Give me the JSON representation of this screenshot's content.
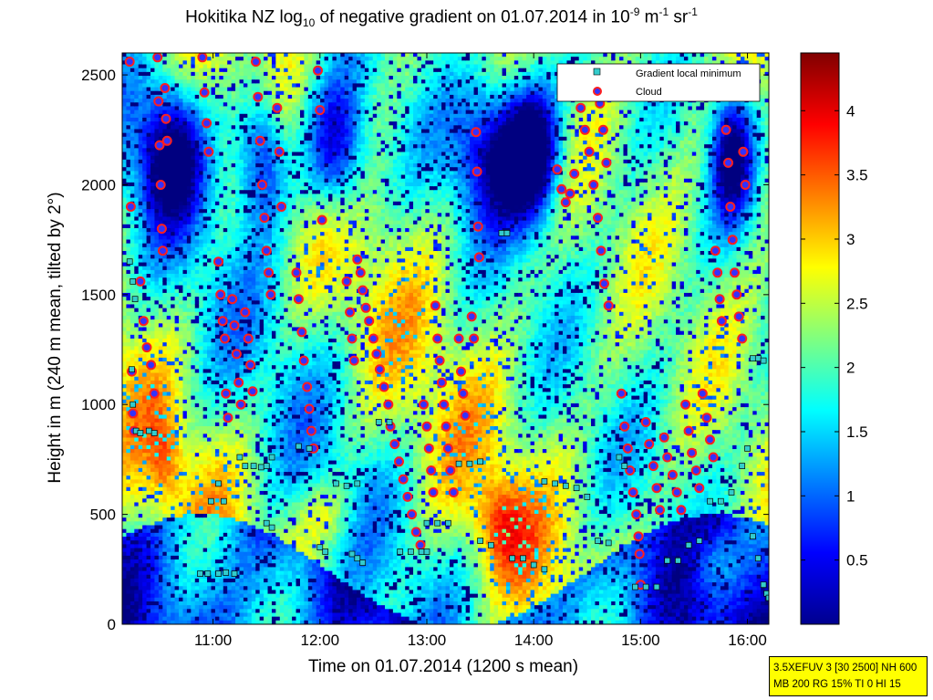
{
  "title": {
    "pre": "Hokitika NZ log",
    "sub": "10",
    "mid": " of negative gradient on 01.07.2014 in 10",
    "sup1": "-9",
    "unit1": " m",
    "sup2": "-1",
    "unit2": " sr",
    "sup3": "-1"
  },
  "chart_data": {
    "type": "heatmap",
    "xlabel": "Time on 01.07.2014 (1200 s mean)",
    "ylabel": "Height in m (240 m mean, tilted by 2°)",
    "x_ticks": [
      "11:00",
      "12:00",
      "13:00",
      "14:00",
      "15:00",
      "16:00"
    ],
    "x_tick_hours": [
      11,
      12,
      13,
      14,
      15,
      16
    ],
    "xlim_hours": [
      10.15,
      16.2
    ],
    "y_ticks": [
      0,
      500,
      1000,
      1500,
      2000,
      2500
    ],
    "ylim": [
      0,
      2600
    ],
    "colorbar": {
      "ticks": [
        0.5,
        1,
        1.5,
        2,
        2.5,
        3,
        3.5,
        4
      ],
      "range": [
        0,
        4.45
      ],
      "colormap": "jet"
    },
    "legend": {
      "position": "top-right",
      "items": [
        "Gradient local minimum",
        "Cloud"
      ]
    },
    "series": [
      {
        "name": "Cloud",
        "marker": "circle",
        "fill": "#3232ff",
        "edge": "#ff1e1e",
        "points": [
          [
            10.22,
            2560
          ],
          [
            10.23,
            1900
          ],
          [
            10.24,
            1150
          ],
          [
            10.25,
            960
          ],
          [
            10.26,
            880
          ],
          [
            10.32,
            1560
          ],
          [
            10.35,
            1380
          ],
          [
            10.38,
            1260
          ],
          [
            10.42,
            1180
          ],
          [
            10.45,
            1050
          ],
          [
            10.48,
            2580
          ],
          [
            10.49,
            2380
          ],
          [
            10.5,
            2180
          ],
          [
            10.51,
            2000
          ],
          [
            10.52,
            1800
          ],
          [
            10.53,
            1700
          ],
          [
            10.55,
            2440
          ],
          [
            10.56,
            2300
          ],
          [
            10.57,
            2200
          ],
          [
            10.9,
            2580
          ],
          [
            10.92,
            2420
          ],
          [
            10.94,
            2280
          ],
          [
            10.96,
            2150
          ],
          [
            11.05,
            1650
          ],
          [
            11.07,
            1500
          ],
          [
            11.09,
            1380
          ],
          [
            11.11,
            1300
          ],
          [
            11.12,
            1050
          ],
          [
            11.14,
            940
          ],
          [
            11.18,
            1480
          ],
          [
            11.2,
            1360
          ],
          [
            11.22,
            1230
          ],
          [
            11.24,
            1100
          ],
          [
            11.26,
            1000
          ],
          [
            11.3,
            1420
          ],
          [
            11.33,
            1300
          ],
          [
            11.35,
            1180
          ],
          [
            11.37,
            1060
          ],
          [
            11.4,
            2560
          ],
          [
            11.42,
            2400
          ],
          [
            11.44,
            2200
          ],
          [
            11.46,
            2000
          ],
          [
            11.48,
            1850
          ],
          [
            11.5,
            1700
          ],
          [
            11.52,
            1600
          ],
          [
            11.54,
            1500
          ],
          [
            11.6,
            2350
          ],
          [
            11.62,
            2150
          ],
          [
            11.64,
            1900
          ],
          [
            11.78,
            1600
          ],
          [
            11.8,
            1480
          ],
          [
            11.83,
            1330
          ],
          [
            11.85,
            1200
          ],
          [
            11.88,
            1080
          ],
          [
            11.9,
            980
          ],
          [
            11.92,
            880
          ],
          [
            11.94,
            800
          ],
          [
            11.98,
            2520
          ],
          [
            12.0,
            2340
          ],
          [
            12.02,
            1840
          ],
          [
            12.25,
            1560
          ],
          [
            12.28,
            1420
          ],
          [
            12.3,
            1300
          ],
          [
            12.32,
            1200
          ],
          [
            12.35,
            1660
          ],
          [
            12.38,
            1600
          ],
          [
            12.4,
            1520
          ],
          [
            12.43,
            1440
          ],
          [
            12.46,
            1380
          ],
          [
            12.5,
            1300
          ],
          [
            12.53,
            1230
          ],
          [
            12.56,
            1160
          ],
          [
            12.6,
            1080
          ],
          [
            12.64,
            1000
          ],
          [
            12.66,
            900
          ],
          [
            12.7,
            820
          ],
          [
            12.74,
            740
          ],
          [
            12.78,
            660
          ],
          [
            12.82,
            580
          ],
          [
            12.86,
            500
          ],
          [
            12.9,
            420
          ],
          [
            12.94,
            360
          ],
          [
            12.97,
            1000
          ],
          [
            13.0,
            900
          ],
          [
            13.02,
            800
          ],
          [
            13.04,
            700
          ],
          [
            13.06,
            600
          ],
          [
            13.08,
            1450
          ],
          [
            13.1,
            1300
          ],
          [
            13.12,
            1200
          ],
          [
            13.14,
            1100
          ],
          [
            13.16,
            1000
          ],
          [
            13.18,
            900
          ],
          [
            13.2,
            800
          ],
          [
            13.22,
            700
          ],
          [
            13.25,
            600
          ],
          [
            13.3,
            1300
          ],
          [
            13.32,
            1150
          ],
          [
            13.34,
            1050
          ],
          [
            13.36,
            950
          ],
          [
            13.42,
            1400
          ],
          [
            13.44,
            1300
          ],
          [
            13.46,
            2240
          ],
          [
            13.47,
            2060
          ],
          [
            13.48,
            1810
          ],
          [
            13.49,
            1670
          ],
          [
            14.22,
            2070
          ],
          [
            14.26,
            1980
          ],
          [
            14.3,
            1920
          ],
          [
            14.34,
            1960
          ],
          [
            14.38,
            2050
          ],
          [
            14.4,
            2450
          ],
          [
            14.44,
            2350
          ],
          [
            14.48,
            2250
          ],
          [
            14.52,
            2150
          ],
          [
            14.56,
            2000
          ],
          [
            14.6,
            1850
          ],
          [
            14.63,
            1700
          ],
          [
            14.66,
            1550
          ],
          [
            14.7,
            1450
          ],
          [
            14.62,
            2370
          ],
          [
            14.65,
            2250
          ],
          [
            14.68,
            2100
          ],
          [
            14.82,
            1050
          ],
          [
            14.85,
            900
          ],
          [
            14.88,
            800
          ],
          [
            14.9,
            700
          ],
          [
            14.93,
            600
          ],
          [
            14.96,
            500
          ],
          [
            14.98,
            400
          ],
          [
            14.99,
            320
          ],
          [
            15.0,
            180
          ],
          [
            15.05,
            920
          ],
          [
            15.08,
            820
          ],
          [
            15.12,
            720
          ],
          [
            15.15,
            620
          ],
          [
            15.18,
            520
          ],
          [
            15.22,
            850
          ],
          [
            15.25,
            760
          ],
          [
            15.3,
            680
          ],
          [
            15.34,
            600
          ],
          [
            15.38,
            520
          ],
          [
            15.42,
            1000
          ],
          [
            15.45,
            880
          ],
          [
            15.48,
            780
          ],
          [
            15.52,
            700
          ],
          [
            15.55,
            620
          ],
          [
            15.58,
            1050
          ],
          [
            15.62,
            940
          ],
          [
            15.65,
            840
          ],
          [
            15.68,
            760
          ],
          [
            15.7,
            1700
          ],
          [
            15.72,
            1600
          ],
          [
            15.74,
            1480
          ],
          [
            15.76,
            1380
          ],
          [
            15.8,
            2250
          ],
          [
            15.82,
            2100
          ],
          [
            15.84,
            1900
          ],
          [
            15.86,
            1750
          ],
          [
            15.88,
            1600
          ],
          [
            15.9,
            1500
          ],
          [
            15.92,
            1400
          ],
          [
            15.95,
            1300
          ],
          [
            15.78,
            2480
          ],
          [
            15.96,
            2150
          ],
          [
            15.98,
            2000
          ]
        ]
      },
      {
        "name": "Gradient local minimum",
        "marker": "square",
        "fill": "#33cccc",
        "points": [
          [
            10.22,
            1650
          ],
          [
            10.25,
            1560
          ],
          [
            10.27,
            1480
          ],
          [
            10.28,
            880
          ],
          [
            10.32,
            870
          ],
          [
            10.4,
            880
          ],
          [
            10.45,
            870
          ],
          [
            10.24,
            1160
          ],
          [
            10.25,
            1000
          ],
          [
            10.98,
            560
          ],
          [
            11.05,
            640
          ],
          [
            11.1,
            560
          ],
          [
            10.88,
            230
          ],
          [
            10.95,
            230
          ],
          [
            11.05,
            230
          ],
          [
            11.12,
            235
          ],
          [
            11.2,
            230
          ],
          [
            11.25,
            760
          ],
          [
            11.3,
            720
          ],
          [
            11.38,
            720
          ],
          [
            11.45,
            715
          ],
          [
            11.5,
            720
          ],
          [
            11.55,
            760
          ],
          [
            11.5,
            460
          ],
          [
            11.55,
            440
          ],
          [
            11.8,
            810
          ],
          [
            11.9,
            800
          ],
          [
            12.0,
            350
          ],
          [
            12.05,
            330
          ],
          [
            12.15,
            640
          ],
          [
            12.25,
            630
          ],
          [
            12.35,
            640
          ],
          [
            12.3,
            320
          ],
          [
            12.35,
            300
          ],
          [
            12.4,
            280
          ],
          [
            12.55,
            920
          ],
          [
            12.65,
            920
          ],
          [
            12.75,
            330
          ],
          [
            12.85,
            330
          ],
          [
            12.95,
            330
          ],
          [
            13.0,
            330
          ],
          [
            13.0,
            460
          ],
          [
            13.1,
            460
          ],
          [
            13.2,
            460
          ],
          [
            13.3,
            730
          ],
          [
            13.4,
            730
          ],
          [
            13.5,
            740
          ],
          [
            13.5,
            380
          ],
          [
            13.6,
            360
          ],
          [
            13.7,
            1780
          ],
          [
            13.75,
            1780
          ],
          [
            13.8,
            300
          ],
          [
            13.9,
            300
          ],
          [
            14.0,
            270
          ],
          [
            14.1,
            250
          ],
          [
            14.1,
            650
          ],
          [
            14.2,
            640
          ],
          [
            14.3,
            630
          ],
          [
            14.4,
            620
          ],
          [
            14.5,
            580
          ],
          [
            14.6,
            380
          ],
          [
            14.7,
            370
          ],
          [
            14.8,
            760
          ],
          [
            14.85,
            720
          ],
          [
            14.95,
            170
          ],
          [
            15.05,
            170
          ],
          [
            15.15,
            170
          ],
          [
            15.25,
            290
          ],
          [
            15.35,
            290
          ],
          [
            15.45,
            360
          ],
          [
            15.55,
            380
          ],
          [
            15.65,
            560
          ],
          [
            15.75,
            560
          ],
          [
            15.85,
            600
          ],
          [
            15.95,
            720
          ],
          [
            16.0,
            800
          ],
          [
            16.05,
            400
          ],
          [
            16.1,
            300
          ],
          [
            16.05,
            1210
          ],
          [
            16.1,
            1210
          ],
          [
            16.15,
            1200
          ],
          [
            16.15,
            180
          ],
          [
            16.18,
            140
          ],
          [
            16.2,
            120
          ]
        ]
      }
    ]
  },
  "info_box": {
    "line1": "3.5XEFUV 3 [30 2500] NH 600",
    "line2": "MB 200 RG 15% TI 0 HI 15"
  }
}
